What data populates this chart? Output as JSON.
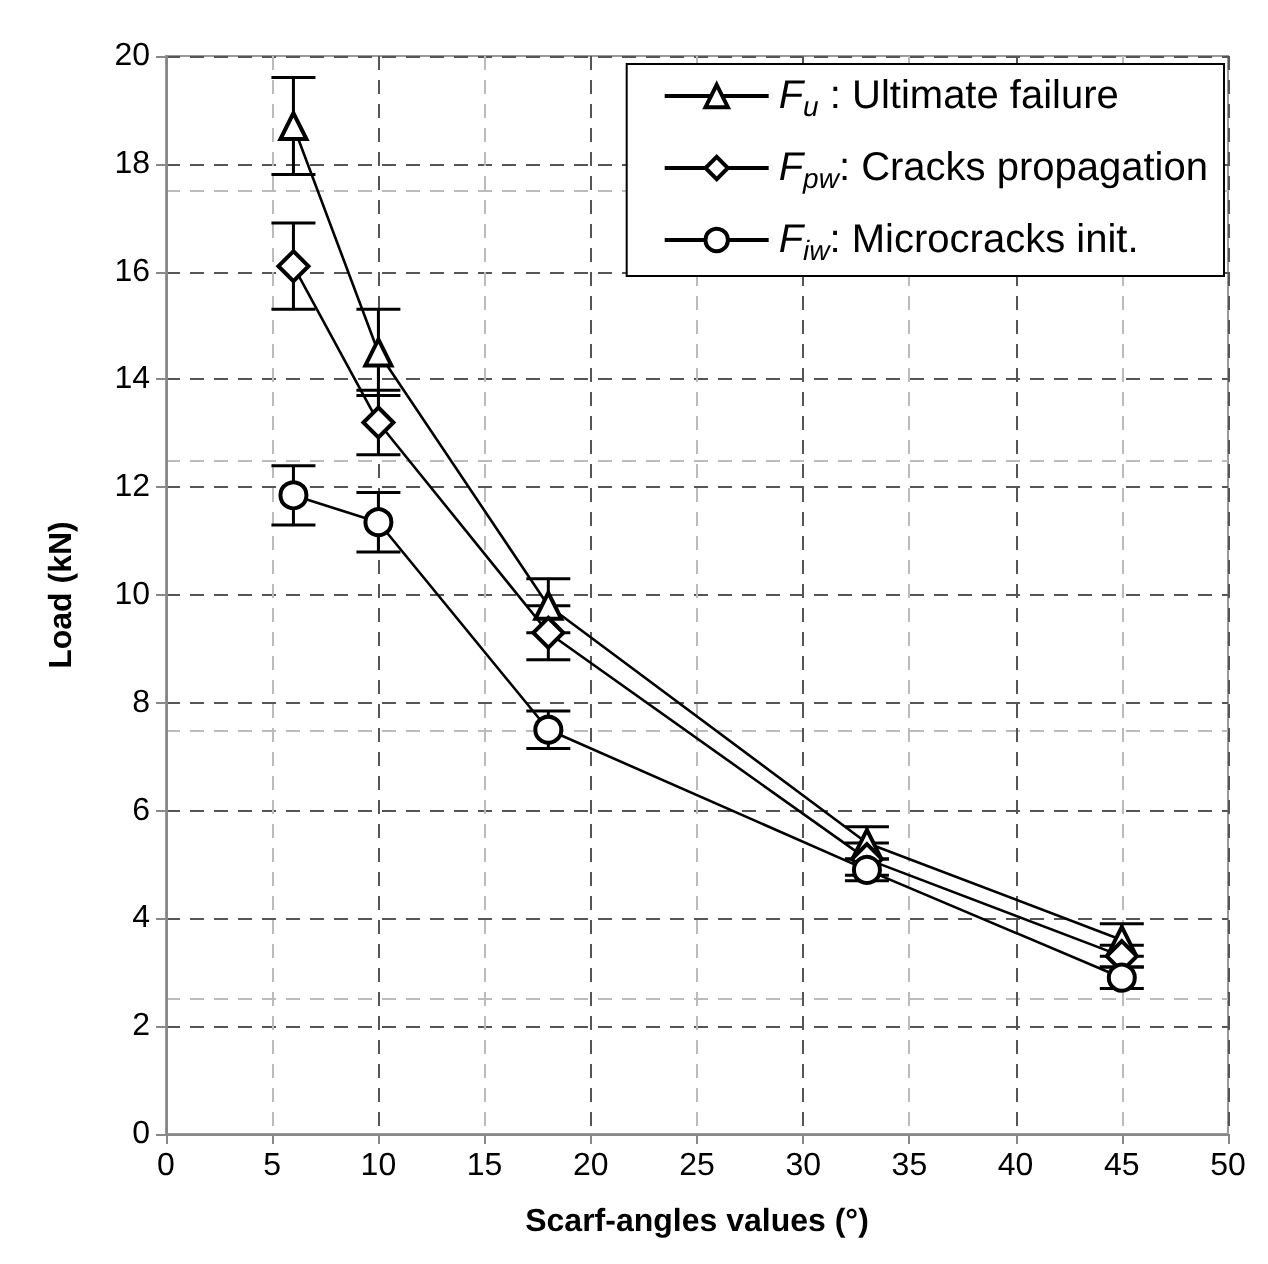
{
  "chart_data": {
    "type": "line",
    "xlabel": "Scarf-angles values (°)",
    "ylabel": "Load (kN)",
    "xlim": [
      0,
      50
    ],
    "xticks": [
      0,
      5,
      10,
      15,
      20,
      25,
      30,
      35,
      40,
      45,
      50
    ],
    "ylim": [
      0,
      20
    ],
    "yticks": [
      0,
      2,
      4,
      6,
      8,
      10,
      12,
      14,
      16,
      18,
      20
    ],
    "grid": true,
    "legend": "top right",
    "line_style": "solid",
    "x": [
      6,
      10,
      18,
      33,
      45
    ],
    "series": [
      {
        "name": "F$_{u}$ : Ultimate failure",
        "color": "#000000",
        "marker": "triangle",
        "values": [
          18.7,
          14.5,
          9.8,
          5.4,
          3.6
        ],
        "errors": [
          0.9,
          0.8,
          0.5,
          0.3,
          0.3
        ]
      },
      {
        "name": "F$_{pw}$: Cracks propagation",
        "color": "#000000",
        "marker": "diamond",
        "values": [
          16.1,
          13.2,
          9.3,
          5.1,
          3.3
        ],
        "errors": [
          0.8,
          0.6,
          0.5,
          0.3,
          0.2
        ]
      },
      {
        "name": "F$_{iw}$: Microcracks init.",
        "color": "#000000",
        "marker": "circle",
        "values": [
          11.85,
          11.35,
          7.5,
          4.9,
          2.9
        ],
        "errors": [
          0.55,
          0.55,
          0.35,
          0.2,
          0.2
        ]
      }
    ]
  }
}
